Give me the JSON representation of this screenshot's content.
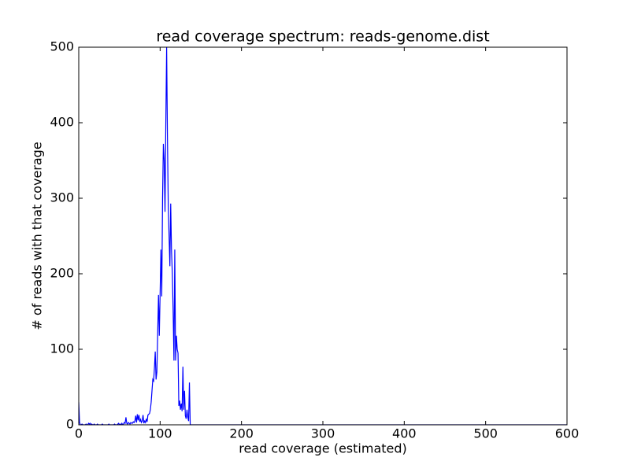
{
  "chart_data": {
    "type": "line",
    "title": "read coverage spectrum: reads-genome.dist",
    "xlabel": "read coverage (estimated)",
    "ylabel": "# of reads with that coverage",
    "x": [
      0,
      1,
      2,
      3,
      4,
      5,
      6,
      7,
      8,
      9,
      10,
      11,
      12,
      13,
      14,
      15,
      16,
      17,
      18,
      19,
      20,
      21,
      22,
      23,
      24,
      25,
      26,
      27,
      28,
      29,
      30,
      31,
      32,
      33,
      34,
      35,
      36,
      37,
      38,
      39,
      40,
      41,
      42,
      43,
      44,
      45,
      46,
      47,
      48,
      49,
      50,
      51,
      52,
      53,
      54,
      55,
      56,
      57,
      58,
      59,
      60,
      61,
      62,
      63,
      64,
      65,
      66,
      67,
      68,
      69,
      70,
      71,
      72,
      73,
      74,
      75,
      76,
      77,
      78,
      79,
      80,
      81,
      82,
      83,
      84,
      85,
      86,
      87,
      88,
      89,
      90,
      91,
      92,
      93,
      94,
      95,
      96,
      97,
      98,
      99,
      100,
      101,
      102,
      103,
      104,
      105,
      106,
      107,
      108,
      109,
      110,
      111,
      112,
      113,
      114,
      115,
      116,
      117,
      118,
      119,
      120,
      121,
      122,
      123,
      124,
      125,
      126,
      127,
      128,
      129,
      130,
      131,
      132,
      133,
      134,
      135,
      136,
      137,
      138,
      139,
      140,
      600
    ],
    "series": [
      {
        "name": "reads-genome.dist",
        "color": "#0000ff",
        "values": [
          30,
          3,
          0,
          0,
          1,
          0,
          0,
          0,
          0,
          1,
          0,
          0,
          2,
          1,
          2,
          0,
          1,
          0,
          0,
          1,
          0,
          0,
          0,
          1,
          0,
          0,
          0,
          0,
          0,
          1,
          0,
          0,
          0,
          0,
          0,
          0,
          0,
          1,
          0,
          0,
          0,
          0,
          0,
          0,
          1,
          0,
          0,
          0,
          1,
          2,
          0,
          1,
          0,
          2,
          0,
          1,
          3,
          2,
          10,
          2,
          1,
          3,
          2,
          1,
          3,
          2,
          2,
          4,
          3,
          5,
          12,
          3,
          14,
          6,
          13,
          4,
          7,
          3,
          5,
          13,
          2,
          5,
          3,
          8,
          4,
          13,
          14,
          15,
          20,
          30,
          45,
          60,
          58,
          75,
          97,
          60,
          70,
          120,
          172,
          118,
          175,
          232,
          170,
          300,
          372,
          350,
          282,
          400,
          500,
          380,
          290,
          250,
          210,
          293,
          230,
          200,
          150,
          85,
          232,
          85,
          118,
          100,
          95,
          25,
          32,
          20,
          28,
          18,
          77,
          20,
          45,
          12,
          8,
          20,
          10,
          5,
          56,
          0,
          0,
          0,
          0,
          0
        ]
      }
    ],
    "xlim": [
      0,
      600
    ],
    "ylim": [
      0,
      500
    ],
    "xticks": [
      0,
      100,
      200,
      300,
      400,
      500,
      600
    ],
    "yticks": [
      0,
      100,
      200,
      300,
      400,
      500
    ]
  }
}
